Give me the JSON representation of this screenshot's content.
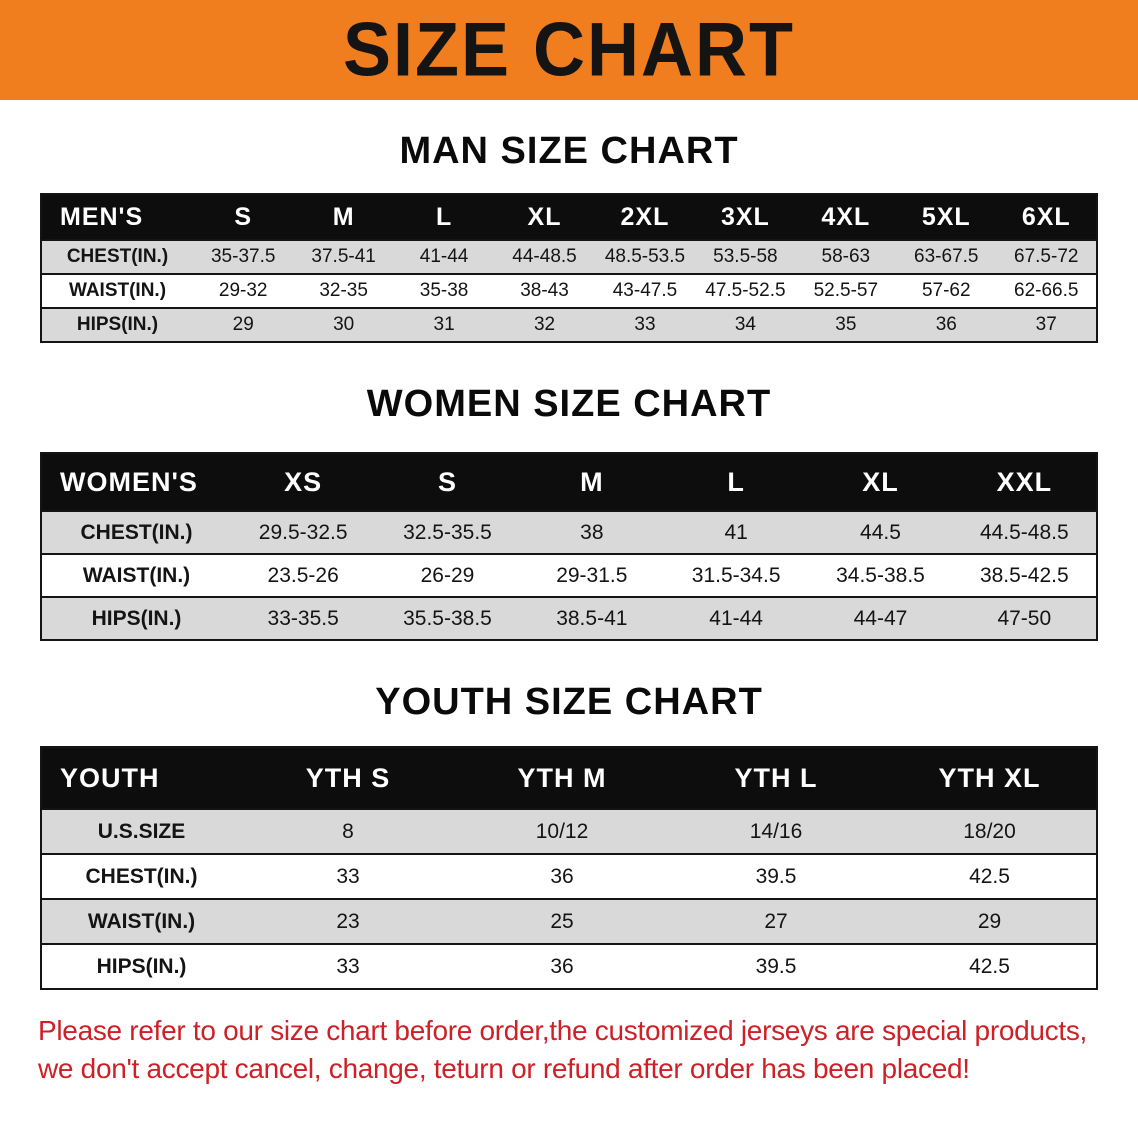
{
  "banner": {
    "title": "SIZE CHART"
  },
  "colors": {
    "banner_bg": "#f07e1e",
    "table_header_bg": "#0d0d0d",
    "row_stripe_gray": "#d9d9d9",
    "footer_red": "#cd2127"
  },
  "men": {
    "heading": "MAN SIZE CHART",
    "table": {
      "header": [
        "MEN'S",
        "S",
        "M",
        "L",
        "XL",
        "2XL",
        "3XL",
        "4XL",
        "5XL",
        "6XL"
      ],
      "rows": [
        [
          "CHEST(IN.)",
          "35-37.5",
          "37.5-41",
          "41-44",
          "44-48.5",
          "48.5-53.5",
          "53.5-58",
          "58-63",
          "63-67.5",
          "67.5-72"
        ],
        [
          "WAIST(IN.)",
          "29-32",
          "32-35",
          "35-38",
          "38-43",
          "43-47.5",
          "47.5-52.5",
          "52.5-57",
          "57-62",
          "62-66.5"
        ],
        [
          "HIPS(IN.)",
          "29",
          "30",
          "31",
          "32",
          "33",
          "34",
          "35",
          "36",
          "37"
        ]
      ]
    }
  },
  "women": {
    "heading": "WOMEN SIZE CHART",
    "table": {
      "header": [
        "WOMEN'S",
        "XS",
        "S",
        "M",
        "L",
        "XL",
        "XXL"
      ],
      "rows": [
        [
          "CHEST(IN.)",
          "29.5-32.5",
          "32.5-35.5",
          "38",
          "41",
          "44.5",
          "44.5-48.5"
        ],
        [
          "WAIST(IN.)",
          "23.5-26",
          "26-29",
          "29-31.5",
          "31.5-34.5",
          "34.5-38.5",
          "38.5-42.5"
        ],
        [
          "HIPS(IN.)",
          "33-35.5",
          "35.5-38.5",
          "38.5-41",
          "41-44",
          "44-47",
          "47-50"
        ]
      ]
    }
  },
  "youth": {
    "heading": "YOUTH SIZE CHART",
    "table": {
      "header": [
        "YOUTH",
        "YTH S",
        "YTH M",
        "YTH L",
        "YTH XL"
      ],
      "rows": [
        [
          "U.S.SIZE",
          "8",
          "10/12",
          "14/16",
          "18/20"
        ],
        [
          "CHEST(IN.)",
          "33",
          "36",
          "39.5",
          "42.5"
        ],
        [
          "WAIST(IN.)",
          "23",
          "25",
          "27",
          "29"
        ],
        [
          "HIPS(IN.)",
          "33",
          "36",
          "39.5",
          "42.5"
        ]
      ]
    }
  },
  "footer": {
    "line1": "Please refer to our size chart before order,the customized jerseys are special products,",
    "line2": "we don't accept cancel, change, teturn or refund after order has been placed!"
  }
}
